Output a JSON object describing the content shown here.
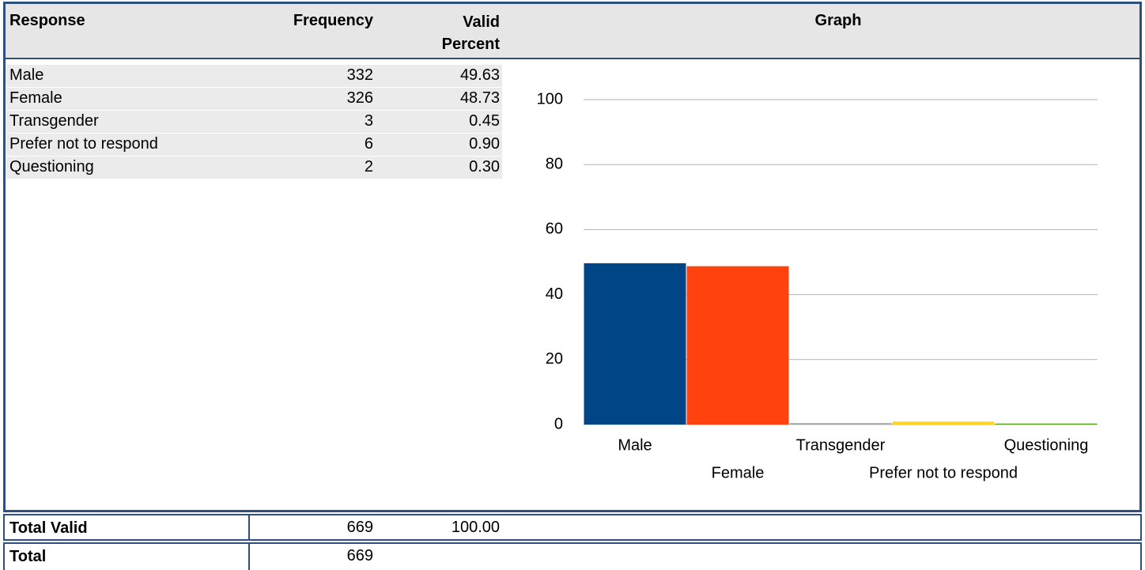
{
  "table": {
    "headers": [
      "Response",
      "Frequency",
      "Valid Percent",
      "Graph"
    ],
    "rows": [
      [
        "Male",
        332,
        49.63
      ],
      [
        "Female",
        326,
        48.73
      ],
      [
        "Transgender",
        3,
        0.45
      ],
      [
        "Prefer not to respond",
        6,
        "0.90"
      ],
      [
        "Questioning",
        2,
        "0.30"
      ]
    ],
    "total_valid": [
      "Total Valid",
      669,
      "100.00"
    ],
    "total": [
      "Total",
      669
    ]
  },
  "chart_data": {
    "type": "bar",
    "categories": [
      "Male",
      "Female",
      "Transgender",
      "Prefer not to respond",
      "Questioning"
    ],
    "values": [
      49.63,
      48.73,
      0.45,
      0.9,
      0.3
    ],
    "colors": [
      "#004586",
      "#ff420e",
      "#a8a8a8",
      "#ffd320",
      "#579d1c"
    ],
    "ylim": [
      0,
      100
    ],
    "yticks": [
      0,
      20,
      40,
      60,
      80,
      100
    ],
    "grid": true
  }
}
